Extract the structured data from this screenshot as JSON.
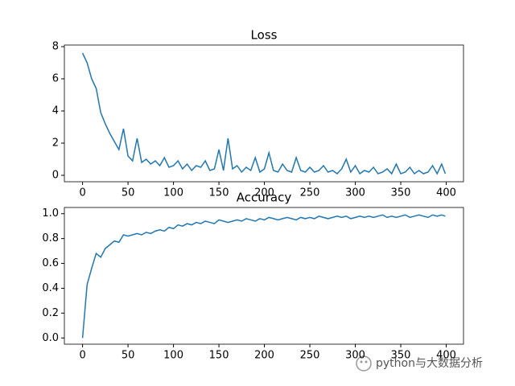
{
  "chart_data": [
    {
      "type": "line",
      "title": "Loss",
      "color": "#1f77b4",
      "x": [
        0,
        5,
        10,
        15,
        20,
        25,
        30,
        35,
        40,
        45,
        50,
        55,
        60,
        65,
        70,
        75,
        80,
        85,
        90,
        95,
        100,
        105,
        110,
        115,
        120,
        125,
        130,
        135,
        140,
        145,
        150,
        155,
        160,
        165,
        170,
        175,
        180,
        185,
        190,
        195,
        200,
        205,
        210,
        215,
        220,
        225,
        230,
        235,
        240,
        245,
        250,
        255,
        260,
        265,
        270,
        275,
        280,
        285,
        290,
        295,
        300,
        305,
        310,
        315,
        320,
        325,
        330,
        335,
        340,
        345,
        350,
        355,
        360,
        365,
        370,
        375,
        380,
        385,
        390,
        395,
        399
      ],
      "values": [
        7.6,
        7.0,
        6.0,
        5.4,
        3.9,
        3.2,
        2.6,
        2.1,
        1.6,
        2.9,
        1.2,
        0.9,
        2.3,
        0.8,
        1.0,
        0.7,
        0.9,
        0.6,
        1.1,
        0.5,
        0.6,
        0.9,
        0.4,
        0.7,
        0.3,
        0.6,
        0.5,
        0.9,
        0.3,
        0.4,
        1.6,
        0.3,
        2.3,
        0.4,
        0.6,
        0.2,
        0.5,
        0.3,
        1.1,
        0.2,
        0.4,
        1.4,
        0.3,
        0.2,
        0.7,
        0.3,
        0.2,
        1.1,
        0.3,
        0.2,
        0.5,
        0.2,
        0.3,
        0.6,
        0.2,
        0.3,
        0.1,
        0.4,
        1.0,
        0.2,
        0.6,
        0.1,
        0.3,
        0.2,
        0.5,
        0.1,
        0.2,
        0.4,
        0.1,
        0.7,
        0.1,
        0.2,
        0.5,
        0.1,
        0.3,
        0.1,
        0.2,
        0.6,
        0.1,
        0.7,
        0.1
      ],
      "xlim": [
        -20,
        419
      ],
      "xticks": [
        0,
        50,
        100,
        150,
        200,
        250,
        300,
        350,
        400
      ],
      "ylim": [
        -0.4,
        8.1
      ],
      "yticks": [
        0,
        2,
        4,
        6,
        8
      ]
    },
    {
      "type": "line",
      "title": "Accuracy",
      "color": "#1f77b4",
      "x": [
        0,
        5,
        10,
        15,
        20,
        25,
        30,
        35,
        40,
        45,
        50,
        55,
        60,
        65,
        70,
        75,
        80,
        85,
        90,
        95,
        100,
        105,
        110,
        115,
        120,
        125,
        130,
        135,
        140,
        145,
        150,
        155,
        160,
        165,
        170,
        175,
        180,
        185,
        190,
        195,
        200,
        205,
        210,
        215,
        220,
        225,
        230,
        235,
        240,
        245,
        250,
        255,
        260,
        265,
        270,
        275,
        280,
        285,
        290,
        295,
        300,
        305,
        310,
        315,
        320,
        325,
        330,
        335,
        340,
        345,
        350,
        355,
        360,
        365,
        370,
        375,
        380,
        385,
        390,
        395,
        399
      ],
      "values": [
        0.0,
        0.43,
        0.56,
        0.68,
        0.65,
        0.72,
        0.75,
        0.78,
        0.77,
        0.83,
        0.82,
        0.83,
        0.84,
        0.83,
        0.85,
        0.84,
        0.86,
        0.87,
        0.86,
        0.89,
        0.88,
        0.91,
        0.9,
        0.92,
        0.91,
        0.93,
        0.92,
        0.94,
        0.93,
        0.92,
        0.95,
        0.94,
        0.93,
        0.94,
        0.95,
        0.94,
        0.96,
        0.95,
        0.94,
        0.96,
        0.95,
        0.97,
        0.96,
        0.95,
        0.96,
        0.97,
        0.96,
        0.95,
        0.97,
        0.96,
        0.97,
        0.96,
        0.98,
        0.97,
        0.96,
        0.97,
        0.98,
        0.97,
        0.98,
        0.96,
        0.97,
        0.98,
        0.97,
        0.98,
        0.97,
        0.98,
        0.99,
        0.97,
        0.98,
        0.97,
        0.98,
        0.99,
        0.97,
        0.98,
        0.99,
        0.98,
        0.97,
        0.99,
        0.98,
        0.99,
        0.98
      ],
      "xlim": [
        -20,
        419
      ],
      "xticks": [
        0,
        50,
        100,
        150,
        200,
        250,
        300,
        350,
        400
      ],
      "ylim": [
        -0.05,
        1.05
      ],
      "yticks": [
        {
          "value": 0,
          "label": "0.0"
        },
        {
          "value": 0.2,
          "label": "0.2"
        },
        {
          "value": 0.4,
          "label": "0.4"
        },
        {
          "value": 0.6,
          "label": "0.6"
        },
        {
          "value": 0.8,
          "label": "0.8"
        },
        {
          "value": 1,
          "label": "1.0"
        }
      ]
    }
  ],
  "watermark": "python与大数据分析"
}
